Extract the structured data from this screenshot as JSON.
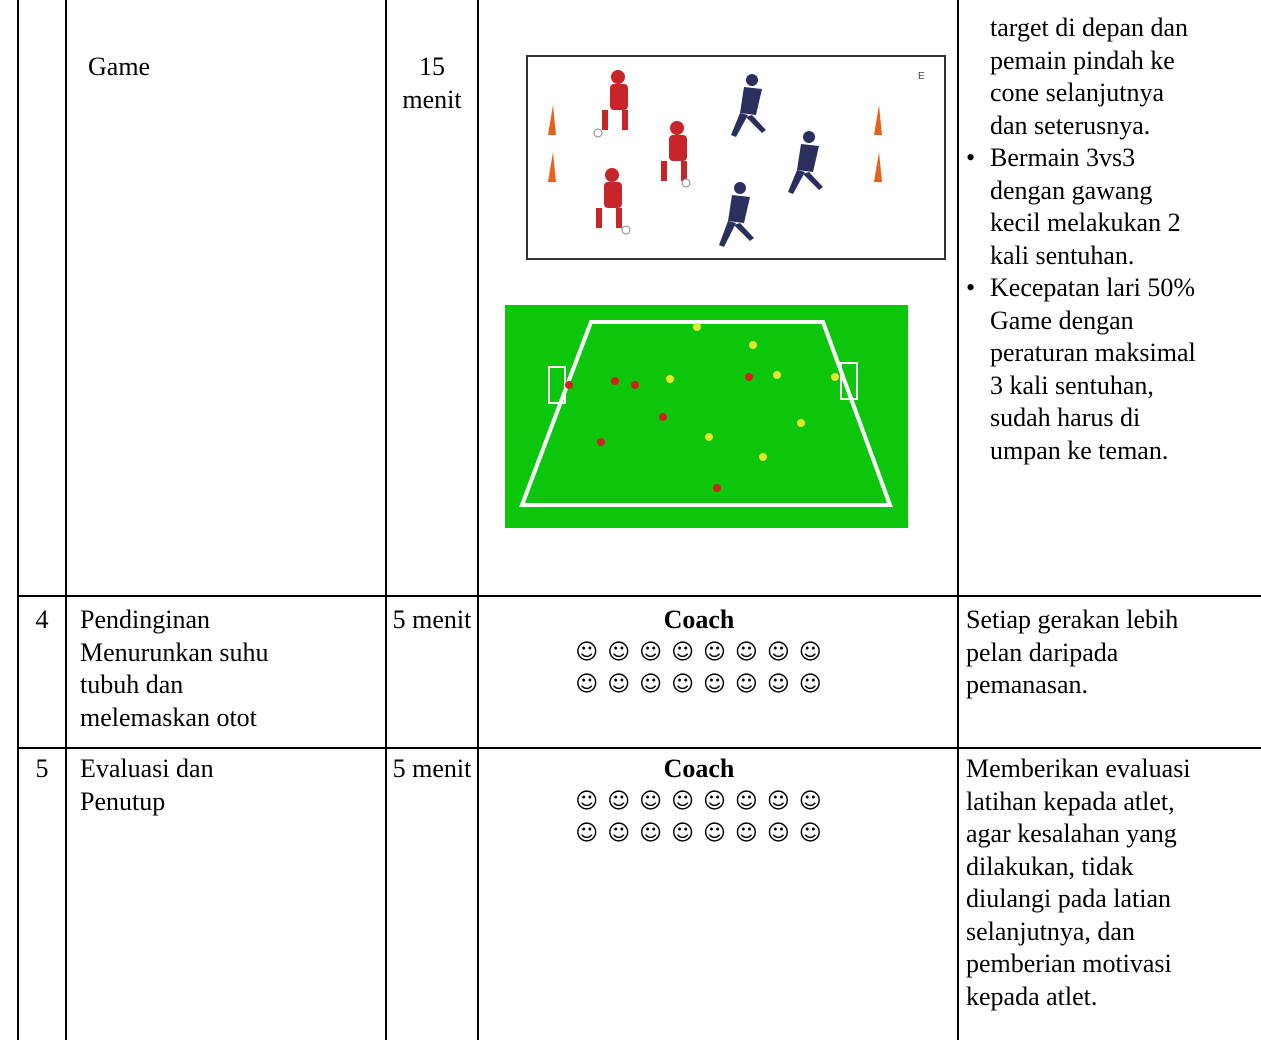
{
  "table": {
    "rows": [
      {
        "activity": [
          "Game"
        ],
        "duration": [
          "15",
          "menit"
        ],
        "image_label": "E",
        "notes": {
          "continuation": [
            "target di depan dan",
            "pemain pindah ke",
            "cone selanjutnya",
            "dan seterusnya."
          ],
          "bullets": [
            [
              "Bermain 3vs3",
              "dengan gawang",
              "kecil melakukan 2",
              "kali sentuhan."
            ],
            [
              "Kecepatan lari 50%",
              "Game dengan",
              "peraturan maksimal",
              "3 kali sentuhan,",
              "sudah harus di",
              "umpan ke teman."
            ]
          ]
        }
      },
      {
        "number": "4",
        "activity": [
          "Pendinginan",
          "Menurunkan suhu",
          "tubuh dan",
          "melemaskan otot"
        ],
        "duration": [
          "5 menit"
        ],
        "formation": {
          "title": "Coach",
          "rows": [
            "☺ ☺ ☺ ☺ ☺ ☺ ☺ ☺",
            "☺ ☺ ☺ ☺ ☺ ☺ ☺ ☺"
          ]
        },
        "notes": [
          "Setiap gerakan lebih",
          "pelan daripada",
          "pemanasan."
        ]
      },
      {
        "number": "5",
        "activity": [
          "Evaluasi dan",
          "Penutup"
        ],
        "duration": [
          "5 menit"
        ],
        "formation": {
          "title": "Coach",
          "rows": [
            "☺ ☺ ☺ ☺ ☺ ☺ ☺ ☺",
            "☺ ☺ ☺ ☺ ☺ ☺ ☺ ☺"
          ]
        },
        "notes": [
          "Memberikan evaluasi",
          "latihan kepada atlet,",
          "agar kesalahan yang",
          "dilakukan, tidak",
          "diulangi pada latian",
          "selanjutnya, dan",
          "pemberian motivasi",
          "kepada atlet."
        ]
      }
    ]
  }
}
